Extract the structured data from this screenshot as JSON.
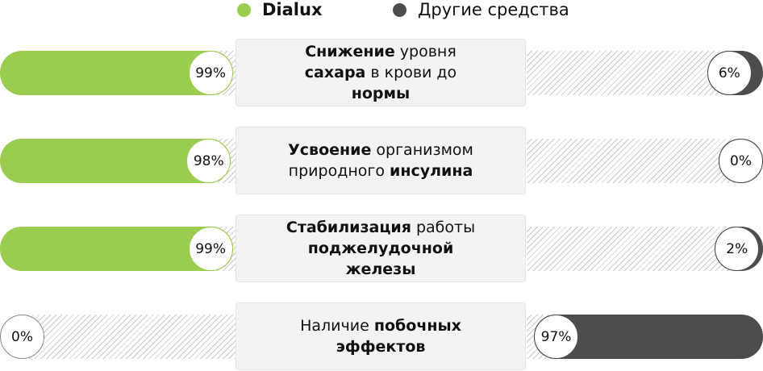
{
  "chart_data": {
    "type": "bar",
    "colors": {
      "dialux": "#9acd4f",
      "other": "#4d4d4d"
    },
    "series": [
      {
        "name": "Dialux",
        "values": [
          99,
          98,
          99,
          0
        ]
      },
      {
        "name": "Другие средства",
        "values": [
          6,
          0,
          2,
          97
        ]
      }
    ],
    "categories": [
      {
        "parts": [
          {
            "t": "Снижение",
            "b": true
          },
          {
            "t": " уровня ",
            "b": false
          },
          {
            "t": "сахара",
            "b": true
          },
          {
            "t": " в крови до ",
            "b": false
          },
          {
            "t": "нормы",
            "b": true
          }
        ]
      },
      {
        "parts": [
          {
            "t": "Усвоение",
            "b": true
          },
          {
            "t": " организмом природного ",
            "b": false
          },
          {
            "t": "инсулина",
            "b": true
          }
        ]
      },
      {
        "parts": [
          {
            "t": "Стабилизация",
            "b": true
          },
          {
            "t": " работы ",
            "b": false
          },
          {
            "t": "поджелудочной железы",
            "b": true
          }
        ]
      },
      {
        "parts": [
          {
            "t": "Наличие ",
            "b": false
          },
          {
            "t": "побочных эффектов",
            "b": true
          }
        ]
      }
    ],
    "legend": "top"
  }
}
